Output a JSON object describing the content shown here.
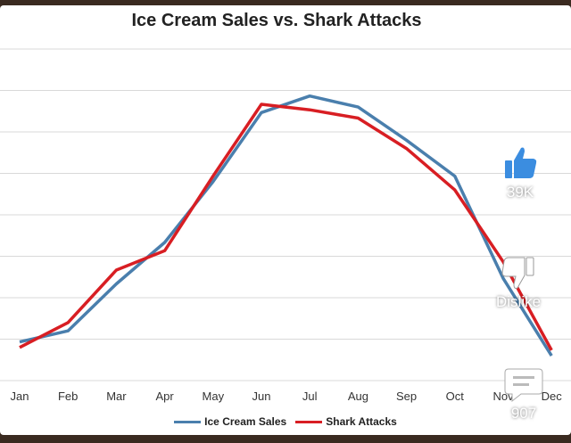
{
  "chart_data": {
    "type": "line",
    "title": "Ice Cream Sales vs. Shark Attacks",
    "xlabel": "",
    "ylabel": "",
    "categories": [
      "Jan",
      "Feb",
      "Mar",
      "Apr",
      "May",
      "Jun",
      "Jul",
      "Aug",
      "Sep",
      "Oct",
      "Nov",
      "Dec"
    ],
    "series": [
      {
        "name": "Ice Cream Sales",
        "color": "#4a7fad",
        "values": [
          14,
          18,
          35,
          50,
          72,
          97,
          103,
          99,
          87,
          74,
          37,
          9
        ]
      },
      {
        "name": "Shark Attacks",
        "color": "#d81e23",
        "values": [
          12,
          21,
          40,
          47,
          74,
          100,
          98,
          95,
          84,
          69,
          43,
          11
        ]
      }
    ],
    "ylim": [
      0,
      120
    ],
    "grid": true,
    "legend": "bottom"
  },
  "overlay": {
    "like_count": "39K",
    "dislike_label": "Dislike",
    "comment_count": "907",
    "like_icon": "thumbs-up-icon",
    "dislike_icon": "thumbs-down-icon",
    "comment_icon": "comment-icon"
  }
}
